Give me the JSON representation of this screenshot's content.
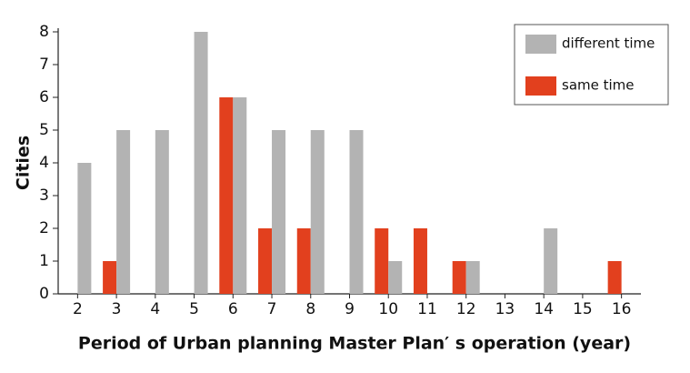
{
  "chart_data": {
    "type": "bar",
    "x_label": "Period of Urban planning Master Plan′ s operation (year)",
    "y_label": "Cities",
    "categories": [
      "2",
      "3",
      "4",
      "5",
      "6",
      "7",
      "8",
      "9",
      "10",
      "11",
      "12",
      "13",
      "14",
      "15",
      "16"
    ],
    "series": [
      {
        "name": "same time",
        "color": "#e2401e",
        "values": [
          0,
          1,
          0,
          0,
          6,
          2,
          2,
          0,
          2,
          2,
          1,
          0,
          0,
          0,
          1
        ]
      },
      {
        "name": "different time",
        "color": "#b3b3b3",
        "values": [
          4,
          5,
          5,
          8,
          6,
          5,
          5,
          5,
          1,
          0,
          1,
          0,
          2,
          0,
          0
        ]
      }
    ],
    "ylim": [
      0,
      8
    ],
    "yticks": [
      0,
      1,
      2,
      3,
      4,
      5,
      6,
      7,
      8
    ],
    "grid": false,
    "legend": "upper right"
  }
}
